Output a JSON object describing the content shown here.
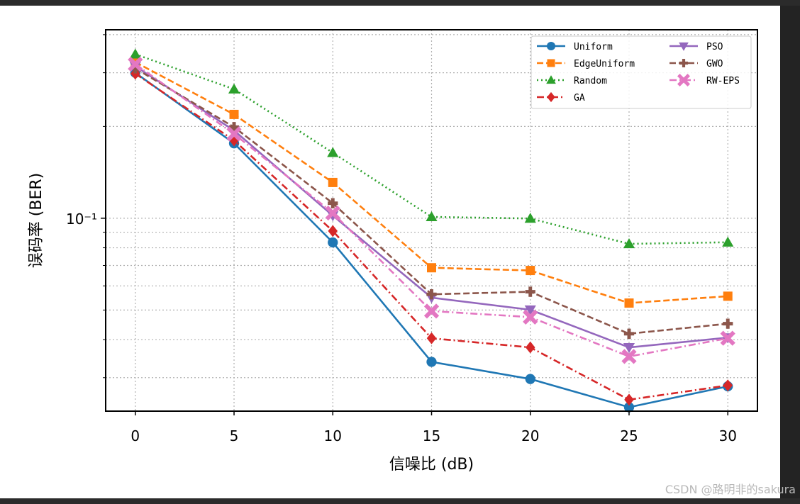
{
  "chart_data": {
    "type": "line",
    "title": "",
    "xlabel": "信噪比 (dB)",
    "ylabel": "误码率 (BER)",
    "x": [
      0,
      5,
      10,
      15,
      20,
      25,
      30
    ],
    "xticks": [
      "0",
      "5",
      "10",
      "15",
      "20",
      "25",
      "30"
    ],
    "xlim": [
      -1.5,
      31.5
    ],
    "ylim": [
      0.0233,
      0.415
    ],
    "yscale": "log",
    "ytick_label": "10⁻¹",
    "grid": true,
    "legend_position": "top-right",
    "legend_columns": 2,
    "series": [
      {
        "name": "Uniform",
        "values": [
          0.3,
          0.176,
          0.0833,
          0.0338,
          0.0297,
          0.024,
          0.0281
        ],
        "color": "#1f77b4",
        "dash": "solid",
        "marker": "circle"
      },
      {
        "name": "EdgeUniform",
        "values": [
          0.325,
          0.219,
          0.131,
          0.0688,
          0.0674,
          0.0527,
          0.0555
        ],
        "color": "#ff7f0e",
        "dash": "dashed",
        "marker": "square"
      },
      {
        "name": "Random",
        "values": [
          0.345,
          0.265,
          0.164,
          0.101,
          0.0998,
          0.0824,
          0.0834
        ],
        "color": "#2ca02c",
        "dash": "dotted",
        "marker": "triangle-up"
      },
      {
        "name": "GA",
        "values": [
          0.298,
          0.18,
          0.0908,
          0.0404,
          0.0377,
          0.0254,
          0.0283
        ],
        "color": "#d62728",
        "dash": "dashdot",
        "marker": "diamond"
      },
      {
        "name": "PSO",
        "values": [
          0.315,
          0.194,
          0.102,
          0.0549,
          0.0501,
          0.0377,
          0.0406
        ],
        "color": "#9467bd",
        "dash": "solid",
        "marker": "triangle-down"
      },
      {
        "name": "GWO",
        "values": [
          0.31,
          0.199,
          0.112,
          0.0563,
          0.0574,
          0.0418,
          0.0451
        ],
        "color": "#8c564b",
        "dash": "dashed",
        "marker": "plus"
      },
      {
        "name": "RW-EPS",
        "values": [
          0.32,
          0.189,
          0.104,
          0.0496,
          0.0474,
          0.0352,
          0.0404
        ],
        "color": "#e377c2",
        "dash": "dashdot",
        "marker": "x"
      }
    ]
  },
  "watermark": "CSDN @路明非的sakura"
}
